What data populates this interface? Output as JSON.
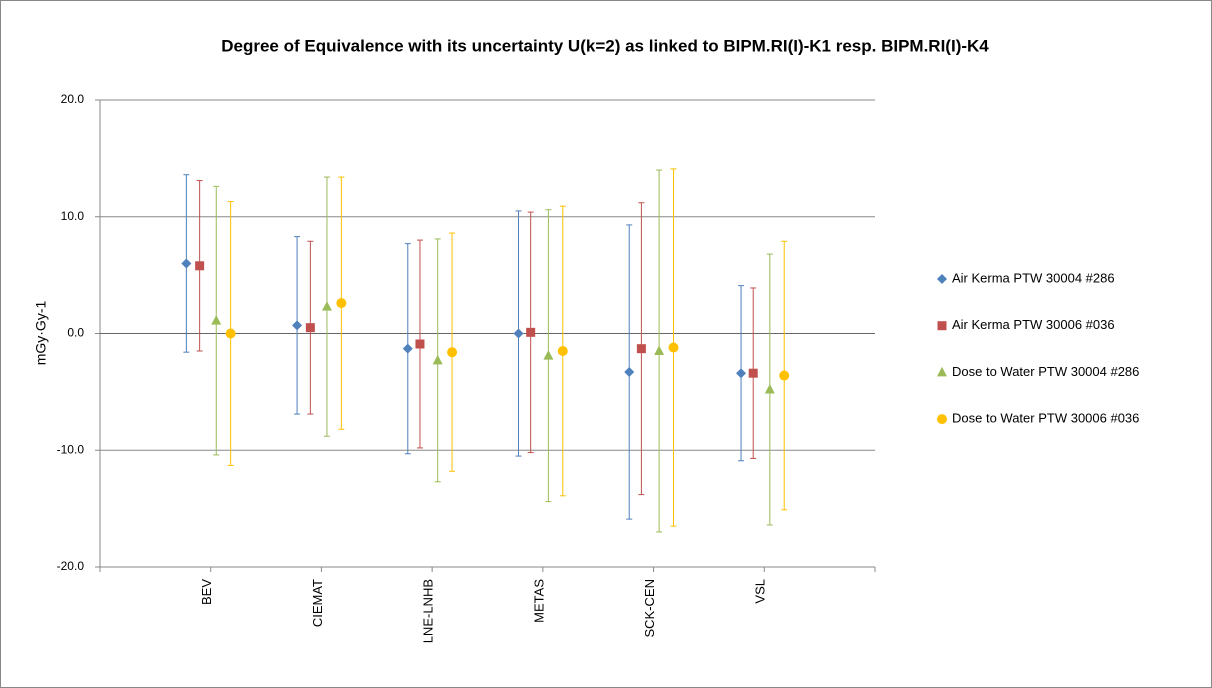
{
  "chart_data": {
    "type": "scatter",
    "title": "Degree of Equivalence with its uncertainty U(k=2) as linked to BIPM.RI(I)-K1 resp. BIPM.RI(I)-K4",
    "y_label": "mGy·Gy-1",
    "categories": [
      "BEV",
      "CIEMAT",
      "LNE-LNHB",
      "METAS",
      "SCK-CEN",
      "VSL"
    ],
    "xlim": [
      0,
      7
    ],
    "ylim": [
      -20,
      20
    ],
    "yticks": [
      {
        "value": -20,
        "label": "-20.0"
      },
      {
        "value": -10,
        "label": "-10.0"
      },
      {
        "value": 0,
        "label": "0.0"
      },
      {
        "value": 10,
        "label": "10.0"
      },
      {
        "value": 20,
        "label": "20.0"
      }
    ],
    "grid": true,
    "legend": "right",
    "series": [
      {
        "name": "Air Kerma PTW 30004 #286",
        "color": "#4f81bd",
        "marker": "diamond",
        "x": [
          0.78,
          1.78,
          2.78,
          3.78,
          4.78,
          5.79
        ],
        "values": [
          6.0,
          0.7,
          -1.3,
          0.0,
          -3.3,
          -3.4
        ],
        "errors": [
          7.6,
          7.6,
          9.0,
          10.5,
          12.6,
          7.5
        ]
      },
      {
        "name": "Air Kerma PTW 30006 #036",
        "color": "#c0504d",
        "marker": "square",
        "x": [
          0.9,
          1.9,
          2.89,
          3.89,
          4.89,
          5.9
        ],
        "values": [
          5.8,
          0.5,
          -0.9,
          0.1,
          -1.3,
          -3.4
        ],
        "errors": [
          7.3,
          7.4,
          8.9,
          10.3,
          12.5,
          7.3
        ]
      },
      {
        "name": "Dose to Water PTW 30004 #286",
        "color": "#9bbb59",
        "marker": "triangle",
        "x": [
          1.05,
          2.05,
          3.05,
          4.05,
          5.05,
          6.05
        ],
        "values": [
          1.1,
          2.3,
          -2.3,
          -1.9,
          -1.5,
          -4.8
        ],
        "errors": [
          11.5,
          11.1,
          10.4,
          12.5,
          15.5,
          11.6
        ]
      },
      {
        "name": "Dose to Water PTW 30006 #036",
        "color": "#ffc000",
        "marker": "circle",
        "x": [
          1.18,
          2.18,
          3.18,
          4.18,
          5.18,
          6.18
        ],
        "values": [
          0.0,
          2.6,
          -1.6,
          -1.5,
          -1.2,
          -3.6
        ],
        "errors": [
          11.3,
          10.8,
          10.2,
          12.4,
          15.3,
          11.5
        ]
      }
    ]
  }
}
